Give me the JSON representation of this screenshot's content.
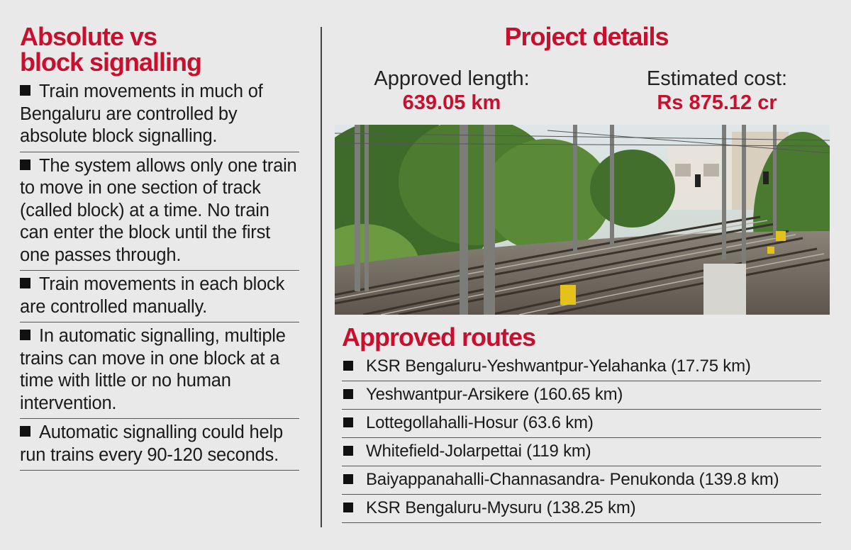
{
  "left": {
    "title_line1": "Absolute vs",
    "title_line2": "block signalling",
    "bullets": [
      "Train movements in much of Bengaluru are controlled by absolute block signalling.",
      "The system allows only one train to move in one section of track (called block) at a time. No train can enter the block until the first one passes through.",
      "Train movements in each block are controlled manually.",
      "In automatic signalling, multiple trains can move in one block at a time with little or no human intervention.",
      "Automatic signalling could help run trains every 90-120 seconds."
    ]
  },
  "project": {
    "title": "Project details",
    "approved_length_label": "Approved length:",
    "approved_length_value": "639.05 km",
    "estimated_cost_label": "Estimated cost:",
    "estimated_cost_value": "Rs 875.12 cr"
  },
  "routes": {
    "title": "Approved routes",
    "items": [
      "KSR Bengaluru-Yeshwantpur-Yelahanka (17.75 km)",
      "Yeshwantpur-Arsikere (160.65 km)",
      "Lottegollahalli-Hosur (63.6 km)",
      "Whitefield-Jolarpettai (119 km)",
      "Baiyappanahalli-Channasandra- Penukonda (139.8 km)",
      "KSR Bengaluru-Mysuru (138.25 km)"
    ]
  },
  "colors": {
    "accent": "#c8102e",
    "background": "#e9e9e9"
  }
}
